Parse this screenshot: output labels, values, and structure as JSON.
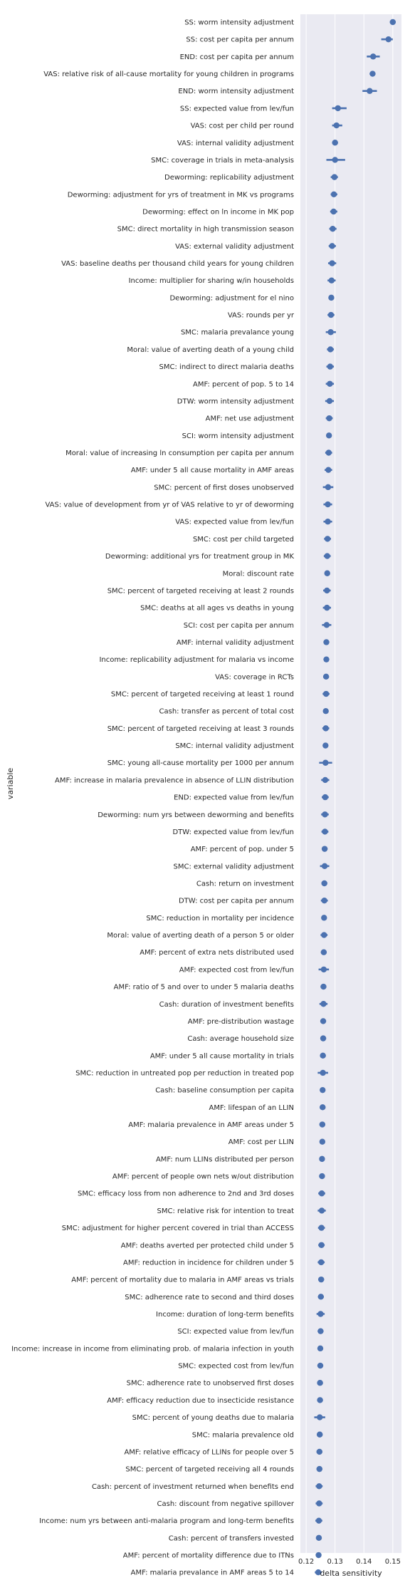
{
  "chart_data": {
    "type": "scatter",
    "style": "point-plot with error bars, horizontal",
    "xlabel": "delta sensitivity",
    "ylabel": "variable",
    "xlim": [
      0.118,
      0.153
    ],
    "xticks": [
      0.12,
      0.13,
      0.14,
      0.15
    ],
    "xtick_labels": [
      "0.12",
      "0.13",
      "0.14",
      "0.15"
    ],
    "grid": true,
    "background": "#eaeaf2",
    "color": "#4c72b0",
    "points": [
      {
        "label": "SS: worm intensity adjustment",
        "value": 0.15,
        "lo": 0.149,
        "hi": 0.151
      },
      {
        "label": "SS: cost per capita per annum",
        "value": 0.1485,
        "lo": 0.146,
        "hi": 0.15
      },
      {
        "label": "END: cost per capita per annum",
        "value": 0.1432,
        "lo": 0.141,
        "hi": 0.1455
      },
      {
        "label": "VAS: relative risk of all-cause mortality for young children in programs",
        "value": 0.143,
        "lo": 0.142,
        "hi": 0.144
      },
      {
        "label": "END: worm intensity adjustment",
        "value": 0.142,
        "lo": 0.1395,
        "hi": 0.1445
      },
      {
        "label": "SS: expected value from lev/fun",
        "value": 0.131,
        "lo": 0.129,
        "hi": 0.134
      },
      {
        "label": "VAS: cost per child per round",
        "value": 0.1305,
        "lo": 0.129,
        "hi": 0.1325
      },
      {
        "label": "VAS: internal validity adjustment",
        "value": 0.13,
        "lo": 0.129,
        "hi": 0.131
      },
      {
        "label": "SMC: coverage in trials in meta-analysis",
        "value": 0.13,
        "lo": 0.127,
        "hi": 0.1335
      },
      {
        "label": "Deworming: replicability adjustment",
        "value": 0.1298,
        "lo": 0.1285,
        "hi": 0.131
      },
      {
        "label": "Deworming: adjustment for yrs of treatment in MK vs programs",
        "value": 0.1296,
        "lo": 0.1285,
        "hi": 0.1308
      },
      {
        "label": "Deworming: effect on ln income in MK pop",
        "value": 0.1295,
        "lo": 0.1283,
        "hi": 0.1308
      },
      {
        "label": "SMC: direct mortality in high transmission season",
        "value": 0.1292,
        "lo": 0.128,
        "hi": 0.1305
      },
      {
        "label": "VAS: external validity adjustment",
        "value": 0.129,
        "lo": 0.1278,
        "hi": 0.1303
      },
      {
        "label": "VAS: baseline deaths per thousand child years for young children",
        "value": 0.129,
        "lo": 0.1276,
        "hi": 0.1304
      },
      {
        "label": "Income: multiplier for sharing w/in households",
        "value": 0.1288,
        "lo": 0.1274,
        "hi": 0.1302
      },
      {
        "label": "Deworming: adjustment for el nino",
        "value": 0.1287,
        "lo": 0.1278,
        "hi": 0.1297
      },
      {
        "label": "VAS: rounds per yr",
        "value": 0.1286,
        "lo": 0.1274,
        "hi": 0.1298
      },
      {
        "label": "SMC: malaria prevalance young",
        "value": 0.1285,
        "lo": 0.1268,
        "hi": 0.1303
      },
      {
        "label": "Moral: value of averting death of a young child",
        "value": 0.1284,
        "lo": 0.1272,
        "hi": 0.1296
      },
      {
        "label": "SMC: indirect to direct malaria deaths",
        "value": 0.1283,
        "lo": 0.127,
        "hi": 0.1296
      },
      {
        "label": "AMF: percent of pop. 5 to 14",
        "value": 0.1282,
        "lo": 0.1268,
        "hi": 0.1296
      },
      {
        "label": "DTW: worm intensity adjustment",
        "value": 0.1281,
        "lo": 0.1266,
        "hi": 0.1296
      },
      {
        "label": "AMF: net use adjustment",
        "value": 0.128,
        "lo": 0.1268,
        "hi": 0.1292
      },
      {
        "label": "SCI: worm intensity adjustment",
        "value": 0.1279,
        "lo": 0.1271,
        "hi": 0.1287
      },
      {
        "label": "Moral: value of increasing ln consumption per capita per annum",
        "value": 0.1278,
        "lo": 0.1266,
        "hi": 0.129
      },
      {
        "label": "AMF: under 5 all cause mortality in AMF areas",
        "value": 0.1277,
        "lo": 0.1264,
        "hi": 0.129
      },
      {
        "label": "SMC: percent of first doses unobserved",
        "value": 0.1276,
        "lo": 0.1258,
        "hi": 0.1294
      },
      {
        "label": "VAS: value of development from yr of VAS relative to yr of deworming",
        "value": 0.1275,
        "lo": 0.126,
        "hi": 0.129
      },
      {
        "label": "VAS: expected value from lev/fun",
        "value": 0.1275,
        "lo": 0.126,
        "hi": 0.129
      },
      {
        "label": "SMC: cost per child targeted",
        "value": 0.1274,
        "lo": 0.1262,
        "hi": 0.1286
      },
      {
        "label": "Deworming: additional yrs for treatment group in MK",
        "value": 0.1273,
        "lo": 0.1261,
        "hi": 0.1285
      },
      {
        "label": "Moral: discount rate",
        "value": 0.1273,
        "lo": 0.1264,
        "hi": 0.1282
      },
      {
        "label": "SMC: percent of targeted receiving at least 2 rounds",
        "value": 0.1272,
        "lo": 0.1259,
        "hi": 0.1285
      },
      {
        "label": "SMC: deaths at all ages vs deaths in young",
        "value": 0.1272,
        "lo": 0.1258,
        "hi": 0.1286
      },
      {
        "label": "SCI: cost per capita per annum",
        "value": 0.1271,
        "lo": 0.1255,
        "hi": 0.1287
      },
      {
        "label": "AMF: internal validity adjustment",
        "value": 0.127,
        "lo": 0.1262,
        "hi": 0.1278
      },
      {
        "label": "Income: replicability adjustment for malaria vs income",
        "value": 0.127,
        "lo": 0.1262,
        "hi": 0.1278
      },
      {
        "label": "VAS: coverage in RCTs",
        "value": 0.1269,
        "lo": 0.1259,
        "hi": 0.1279
      },
      {
        "label": "SMC: percent of targeted receiving at least 1 round",
        "value": 0.1269,
        "lo": 0.1257,
        "hi": 0.1281
      },
      {
        "label": "Cash: transfer as percent of total cost",
        "value": 0.1268,
        "lo": 0.126,
        "hi": 0.1276
      },
      {
        "label": "SMC: percent of targeted receiving at least 3 rounds",
        "value": 0.1268,
        "lo": 0.1256,
        "hi": 0.128
      },
      {
        "label": "SMC: internal validity adjustment",
        "value": 0.1267,
        "lo": 0.1259,
        "hi": 0.1275
      },
      {
        "label": "SMC: young all-cause mortality per 1000 per annum",
        "value": 0.1267,
        "lo": 0.1245,
        "hi": 0.129
      },
      {
        "label": "AMF: increase in malaria prevalence in absence of LLIN distribution",
        "value": 0.1266,
        "lo": 0.1252,
        "hi": 0.128
      },
      {
        "label": "END: expected value from lev/fun",
        "value": 0.1266,
        "lo": 0.1254,
        "hi": 0.1278
      },
      {
        "label": "Deworming: num yrs between deworming and benefits",
        "value": 0.1265,
        "lo": 0.1252,
        "hi": 0.1278
      },
      {
        "label": "DTW: expected value from lev/fun",
        "value": 0.1265,
        "lo": 0.1253,
        "hi": 0.1277
      },
      {
        "label": "AMF: percent of pop. under 5",
        "value": 0.1264,
        "lo": 0.1254,
        "hi": 0.1274
      },
      {
        "label": "SMC: external validity adjustment",
        "value": 0.1264,
        "lo": 0.1248,
        "hi": 0.128
      },
      {
        "label": "Cash: return on investment",
        "value": 0.1263,
        "lo": 0.1253,
        "hi": 0.1273
      },
      {
        "label": "DTW: cost per capita per annum",
        "value": 0.1263,
        "lo": 0.1251,
        "hi": 0.1275
      },
      {
        "label": "SMC: reduction in mortality per incidence",
        "value": 0.1262,
        "lo": 0.1254,
        "hi": 0.127
      },
      {
        "label": "Moral: value of averting death of a person 5 or older",
        "value": 0.1262,
        "lo": 0.125,
        "hi": 0.1274
      },
      {
        "label": "AMF: percent of extra nets distributed used",
        "value": 0.1261,
        "lo": 0.1251,
        "hi": 0.1271
      },
      {
        "label": "AMF: expected cost from lev/fun",
        "value": 0.1261,
        "lo": 0.1243,
        "hi": 0.1279
      },
      {
        "label": "AMF: ratio of 5 and over to under 5 malaria deaths",
        "value": 0.126,
        "lo": 0.125,
        "hi": 0.127
      },
      {
        "label": "Cash: duration of investment benefits",
        "value": 0.126,
        "lo": 0.1246,
        "hi": 0.1274
      },
      {
        "label": "AMF: pre-distribution wastage",
        "value": 0.1259,
        "lo": 0.1251,
        "hi": 0.1267
      },
      {
        "label": "Cash: average household size",
        "value": 0.1259,
        "lo": 0.1249,
        "hi": 0.1269
      },
      {
        "label": "AMF: under 5 all cause mortality in trials",
        "value": 0.1258,
        "lo": 0.1248,
        "hi": 0.1268
      },
      {
        "label": "SMC: reduction in untreated pop per reduction in treated pop",
        "value": 0.1258,
        "lo": 0.124,
        "hi": 0.1276
      },
      {
        "label": "Cash: baseline consumption per capita",
        "value": 0.1257,
        "lo": 0.125,
        "hi": 0.1264
      },
      {
        "label": "AMF: lifespan of an LLIN",
        "value": 0.1257,
        "lo": 0.1247,
        "hi": 0.1267
      },
      {
        "label": "AMF: malaria prevalence in AMF areas under 5",
        "value": 0.1256,
        "lo": 0.1246,
        "hi": 0.1266
      },
      {
        "label": "AMF: cost per LLIN",
        "value": 0.1256,
        "lo": 0.1247,
        "hi": 0.1265
      },
      {
        "label": "AMF: num LLINs distributed per person",
        "value": 0.1255,
        "lo": 0.1247,
        "hi": 0.1263
      },
      {
        "label": "AMF: percent of people own nets w/out distribution",
        "value": 0.1255,
        "lo": 0.1245,
        "hi": 0.1265
      },
      {
        "label": "SMC: efficacy loss from non adherence to 2nd and 3rd doses",
        "value": 0.1254,
        "lo": 0.1242,
        "hi": 0.1266
      },
      {
        "label": "SMC: relative risk for intention to treat",
        "value": 0.1254,
        "lo": 0.124,
        "hi": 0.1268
      },
      {
        "label": "SMC: adjustment for higher percent covered in trial than ACCESS",
        "value": 0.1253,
        "lo": 0.1241,
        "hi": 0.1265
      },
      {
        "label": "AMF: deaths averted per protected child under 5",
        "value": 0.1253,
        "lo": 0.1242,
        "hi": 0.1264
      },
      {
        "label": "AMF: reduction in incidence for children under 5",
        "value": 0.1252,
        "lo": 0.124,
        "hi": 0.1264
      },
      {
        "label": "AMF: percent of mortality due to malaria in AMF areas vs trials",
        "value": 0.1252,
        "lo": 0.1242,
        "hi": 0.1262
      },
      {
        "label": "SMC: adherence rate to second and third doses",
        "value": 0.1251,
        "lo": 0.1241,
        "hi": 0.1261
      },
      {
        "label": "Income: duration of long-term benefits",
        "value": 0.125,
        "lo": 0.1236,
        "hi": 0.1264
      },
      {
        "label": "SCI: expected value from lev/fun",
        "value": 0.125,
        "lo": 0.124,
        "hi": 0.126
      },
      {
        "label": "Income: increase in income from eliminating prob. of malaria infection in youth",
        "value": 0.1249,
        "lo": 0.1241,
        "hi": 0.1257
      },
      {
        "label": "SMC: expected cost from lev/fun",
        "value": 0.1249,
        "lo": 0.1239,
        "hi": 0.1259
      },
      {
        "label": "SMC: adherence rate to unobserved first doses",
        "value": 0.1248,
        "lo": 0.1238,
        "hi": 0.1258
      },
      {
        "label": "AMF: efficacy reduction due to insecticide resistance",
        "value": 0.1248,
        "lo": 0.1238,
        "hi": 0.1258
      },
      {
        "label": "SMC: percent of young deaths due to malaria",
        "value": 0.1247,
        "lo": 0.1228,
        "hi": 0.1266
      },
      {
        "label": "SMC: malaria prevalence old",
        "value": 0.1247,
        "lo": 0.1237,
        "hi": 0.1257
      },
      {
        "label": "AMF: relative efficacy of LLINs for people over 5",
        "value": 0.1246,
        "lo": 0.1236,
        "hi": 0.1256
      },
      {
        "label": "SMC: percent of targeted receiving all 4 rounds",
        "value": 0.1246,
        "lo": 0.1236,
        "hi": 0.1256
      },
      {
        "label": "Cash: percent of investment returned when benefits end",
        "value": 0.1245,
        "lo": 0.1233,
        "hi": 0.1257
      },
      {
        "label": "Cash: discount from negative spillover",
        "value": 0.1245,
        "lo": 0.1233,
        "hi": 0.1257
      },
      {
        "label": "Income: num yrs between anti-malaria program and long-term benefits",
        "value": 0.1244,
        "lo": 0.1232,
        "hi": 0.1256
      },
      {
        "label": "Cash: percent of transfers invested",
        "value": 0.1244,
        "lo": 0.1234,
        "hi": 0.1254
      },
      {
        "label": "AMF: percent of mortality difference due to ITNs",
        "value": 0.1243,
        "lo": 0.1235,
        "hi": 0.1251
      },
      {
        "label": "AMF: malaria prevalance in AMF areas 5 to 14",
        "value": 0.1242,
        "lo": 0.123,
        "hi": 0.1254
      }
    ]
  }
}
